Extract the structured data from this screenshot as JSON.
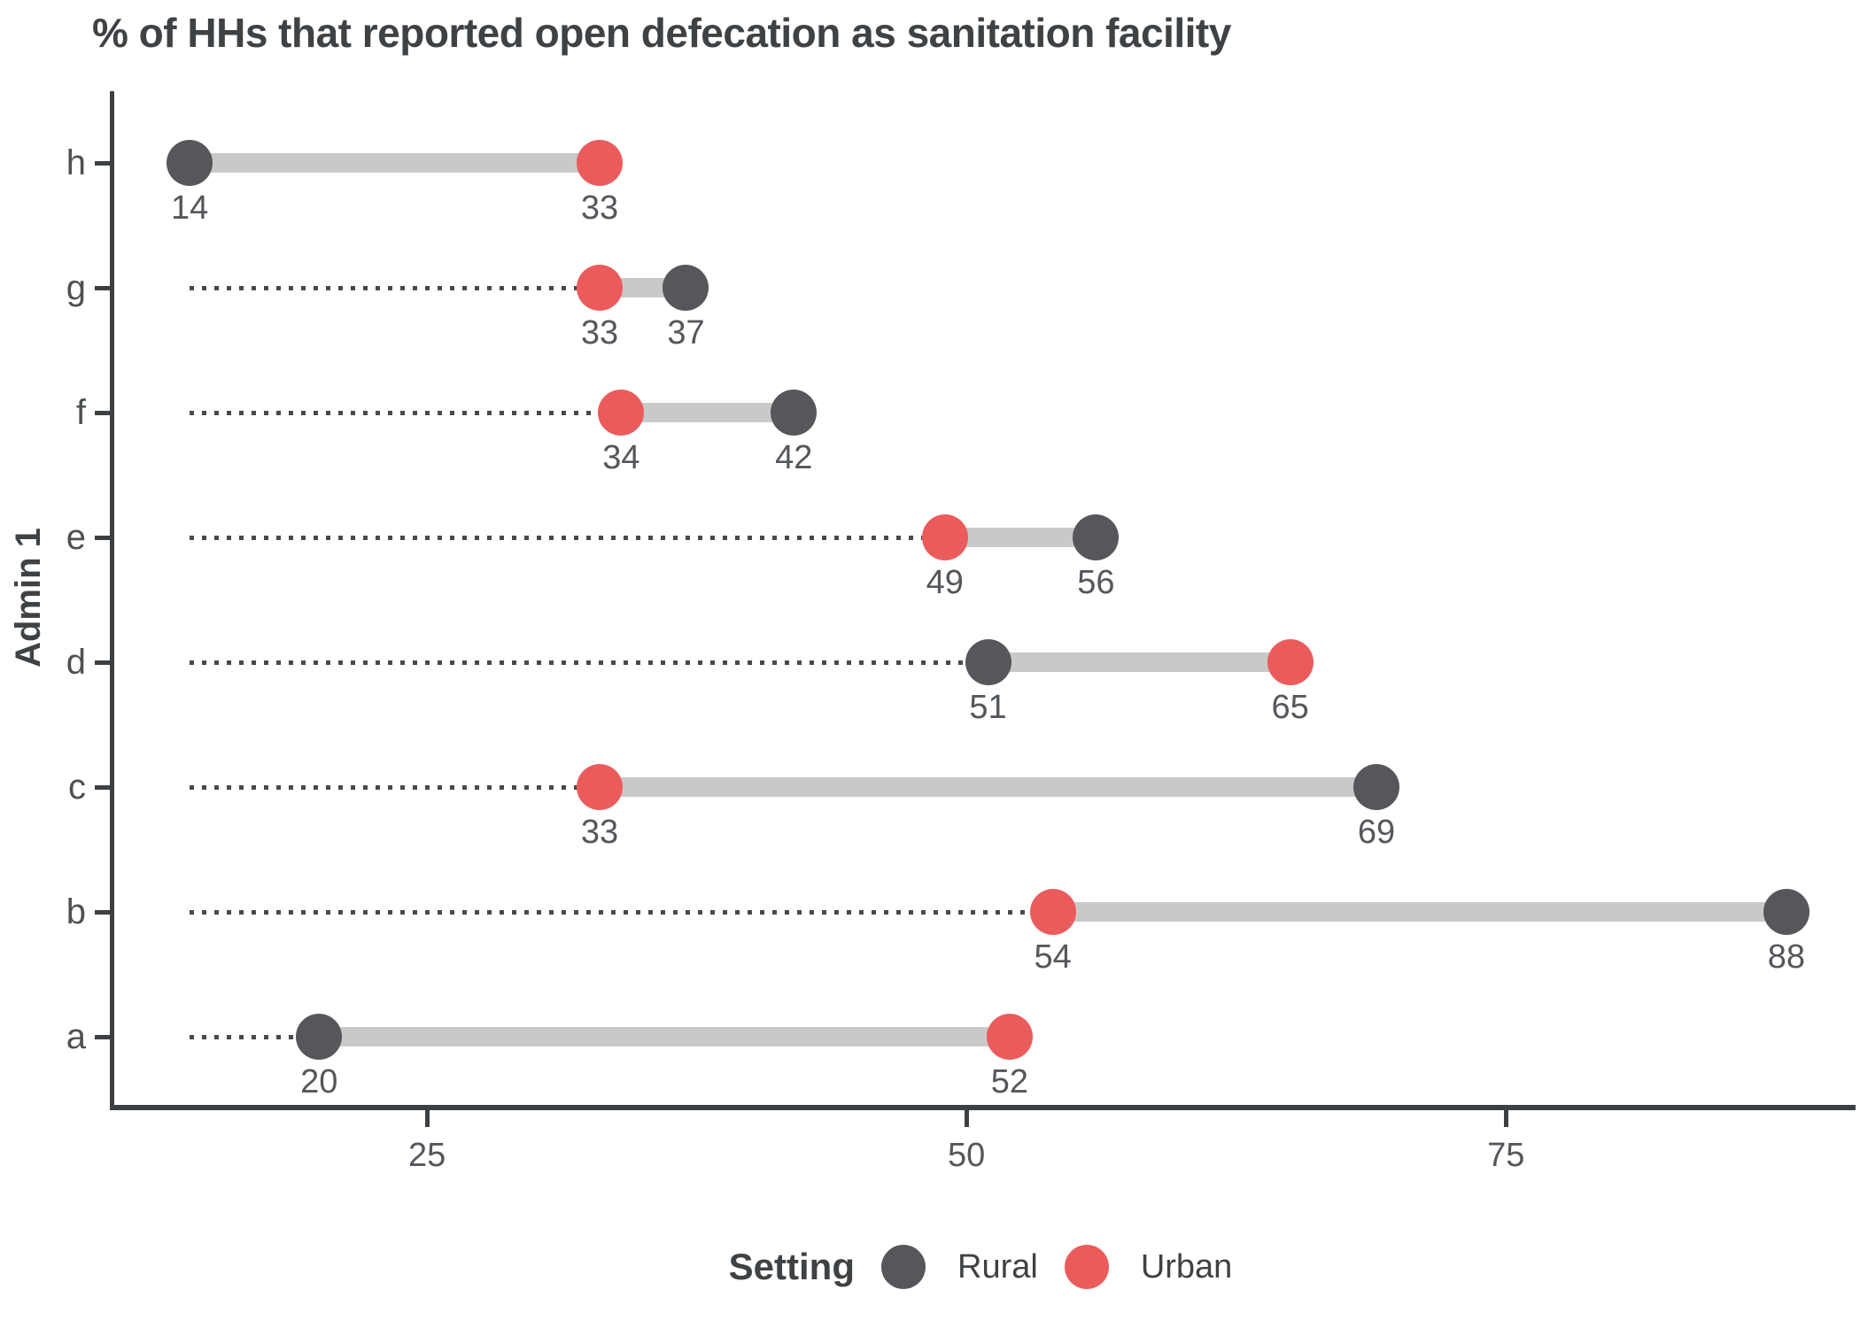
{
  "chart_data": {
    "type": "dumbbell",
    "orientation": "horizontal",
    "title": "% of HHs that reported open defecation as sanitation facility",
    "xlabel": "",
    "ylabel": "Admin 1",
    "categories": [
      "h",
      "g",
      "f",
      "e",
      "d",
      "c",
      "b",
      "a"
    ],
    "series": [
      {
        "name": "Rural",
        "color": "#56575a",
        "values": [
          14,
          37,
          42,
          56,
          51,
          69,
          88,
          20
        ]
      },
      {
        "name": "Urban",
        "color": "#ec5b5c",
        "values": [
          33,
          33,
          34,
          49,
          65,
          33,
          54,
          52
        ]
      }
    ],
    "point_labels": {
      "Rural": [
        14,
        37,
        42,
        56,
        51,
        69,
        88,
        20
      ],
      "Urban": [
        33,
        33,
        34,
        49,
        65,
        33,
        54,
        52
      ]
    },
    "x_ticks": [
      25,
      50,
      75
    ],
    "x_range_edges": [
      10.3,
      91
    ],
    "dotted_leader_start_value": 14,
    "grid": "off",
    "legend": {
      "title": "Setting",
      "position": "bottom",
      "entries": [
        "Rural",
        "Urban"
      ]
    },
    "colors": {
      "range_bar": "#c9c9c9",
      "leader_line": "#47494c",
      "axis_line": "#3d4043",
      "text": "#4d5154"
    }
  }
}
